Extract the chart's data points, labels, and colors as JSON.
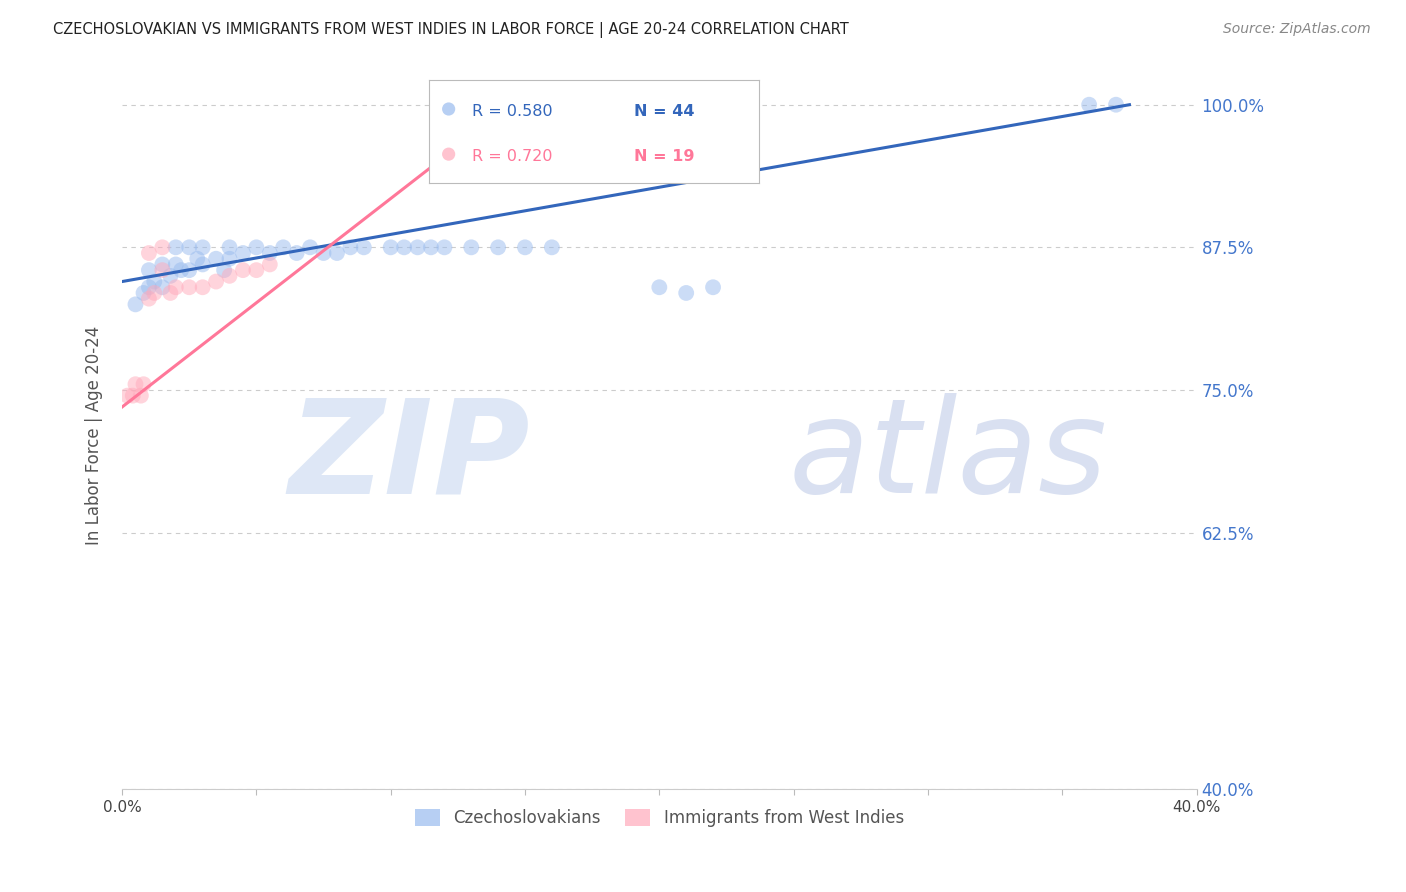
{
  "title": "CZECHOSLOVAKIAN VS IMMIGRANTS FROM WEST INDIES IN LABOR FORCE | AGE 20-24 CORRELATION CHART",
  "source": "Source: ZipAtlas.com",
  "ylabel": "In Labor Force | Age 20-24",
  "r_blue": 0.58,
  "n_blue": 44,
  "r_pink": 0.72,
  "n_pink": 19,
  "legend_blue": "Czechoslovakians",
  "legend_pink": "Immigrants from West Indies",
  "xlim": [
    0.0,
    0.4
  ],
  "ylim": [
    0.4,
    1.02
  ],
  "yticks": [
    0.4,
    0.625,
    0.75,
    0.875,
    1.0
  ],
  "ytick_labels": [
    "40.0%",
    "62.5%",
    "75.0%",
    "87.5%",
    "100.0%"
  ],
  "xticks": [
    0.0,
    0.05,
    0.1,
    0.15,
    0.2,
    0.25,
    0.3,
    0.35,
    0.4
  ],
  "xtick_labels": [
    "0.0%",
    "",
    "",
    "",
    "",
    "",
    "",
    "",
    "40.0%"
  ],
  "blue_scatter_x": [
    0.005,
    0.008,
    0.01,
    0.01,
    0.012,
    0.015,
    0.015,
    0.018,
    0.02,
    0.02,
    0.022,
    0.025,
    0.025,
    0.028,
    0.03,
    0.03,
    0.035,
    0.038,
    0.04,
    0.04,
    0.045,
    0.05,
    0.055,
    0.06,
    0.065,
    0.07,
    0.075,
    0.08,
    0.085,
    0.09,
    0.1,
    0.105,
    0.11,
    0.115,
    0.12,
    0.13,
    0.14,
    0.15,
    0.16,
    0.2,
    0.21,
    0.22,
    0.36,
    0.37
  ],
  "blue_scatter_y": [
    0.825,
    0.835,
    0.84,
    0.855,
    0.845,
    0.84,
    0.86,
    0.85,
    0.86,
    0.875,
    0.855,
    0.855,
    0.875,
    0.865,
    0.86,
    0.875,
    0.865,
    0.855,
    0.865,
    0.875,
    0.87,
    0.875,
    0.87,
    0.875,
    0.87,
    0.875,
    0.87,
    0.87,
    0.875,
    0.875,
    0.875,
    0.875,
    0.875,
    0.875,
    0.875,
    0.875,
    0.875,
    0.875,
    0.875,
    0.84,
    0.835,
    0.84,
    1.0,
    1.0
  ],
  "pink_scatter_x": [
    0.002,
    0.004,
    0.005,
    0.007,
    0.008,
    0.01,
    0.01,
    0.012,
    0.015,
    0.015,
    0.018,
    0.02,
    0.025,
    0.03,
    0.035,
    0.04,
    0.045,
    0.05,
    0.055
  ],
  "pink_scatter_y": [
    0.745,
    0.745,
    0.755,
    0.745,
    0.755,
    0.87,
    0.83,
    0.835,
    0.855,
    0.875,
    0.835,
    0.84,
    0.84,
    0.84,
    0.845,
    0.85,
    0.855,
    0.855,
    0.86
  ],
  "blue_line_x": [
    0.0,
    0.375
  ],
  "blue_line_y": [
    0.845,
    1.0
  ],
  "pink_line_x": [
    0.0,
    0.145
  ],
  "pink_line_y": [
    0.735,
    1.0
  ],
  "bg_color": "#ffffff",
  "scatter_alpha": 0.5,
  "scatter_size": 130,
  "blue_color": "#99bbee",
  "pink_color": "#ffaabb",
  "blue_line_color": "#3366bb",
  "pink_line_color": "#ff7799",
  "grid_color": "#cccccc",
  "title_color": "#222222",
  "axis_label_color": "#555555",
  "right_tick_color": "#4477cc",
  "watermark_zip_color": "#c8d8f0",
  "watermark_atlas_color": "#c0cce8",
  "watermark_alpha": 0.6
}
